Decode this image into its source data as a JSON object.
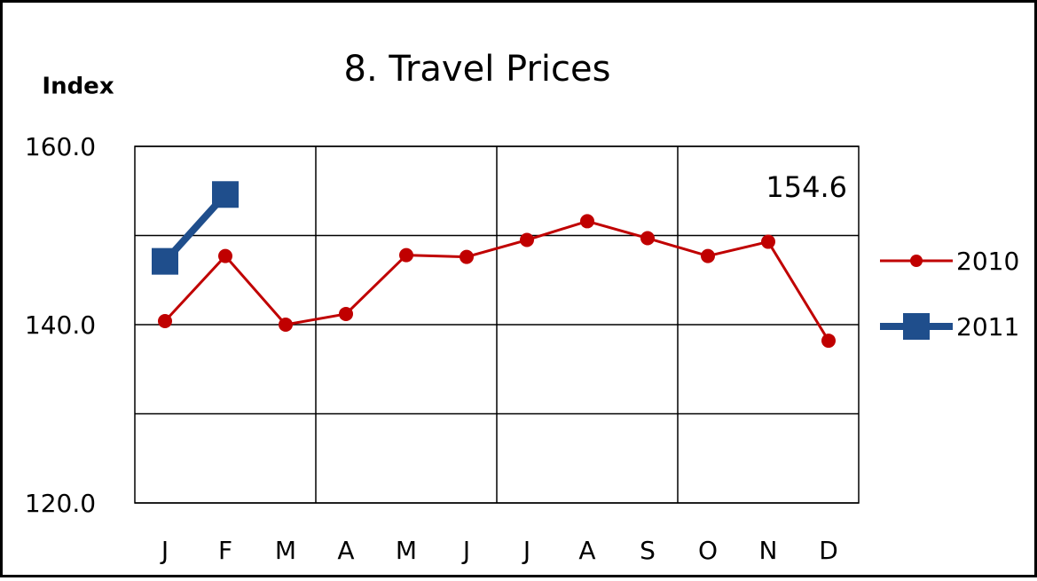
{
  "chart_data": {
    "type": "line",
    "title": "8. Travel Prices",
    "y_label": "Index",
    "categories": [
      "J",
      "F",
      "M",
      "A",
      "M",
      "J",
      "J",
      "A",
      "S",
      "O",
      "N",
      "D"
    ],
    "series": [
      {
        "name": "2010",
        "color": "#c00000",
        "marker": "circle",
        "values": [
          140.4,
          147.7,
          140.0,
          141.2,
          147.8,
          147.6,
          149.5,
          151.6,
          149.7,
          147.7,
          149.3,
          138.2
        ]
      },
      {
        "name": "2011",
        "color": "#1f4e8c",
        "marker": "square",
        "values": [
          147.1,
          154.6,
          null,
          null,
          null,
          null,
          null,
          null,
          null,
          null,
          null,
          null
        ],
        "labeled_points": [
          1
        ]
      }
    ],
    "ylim": [
      120,
      160
    ],
    "yticks": [
      {
        "value": 120,
        "label": "120.0"
      },
      {
        "value": 140,
        "label": "140.0"
      },
      {
        "value": 160,
        "label": "160.0"
      }
    ],
    "ygrid": [
      130,
      150
    ],
    "xgrid_every": 3,
    "grid": true,
    "legend": "right"
  }
}
